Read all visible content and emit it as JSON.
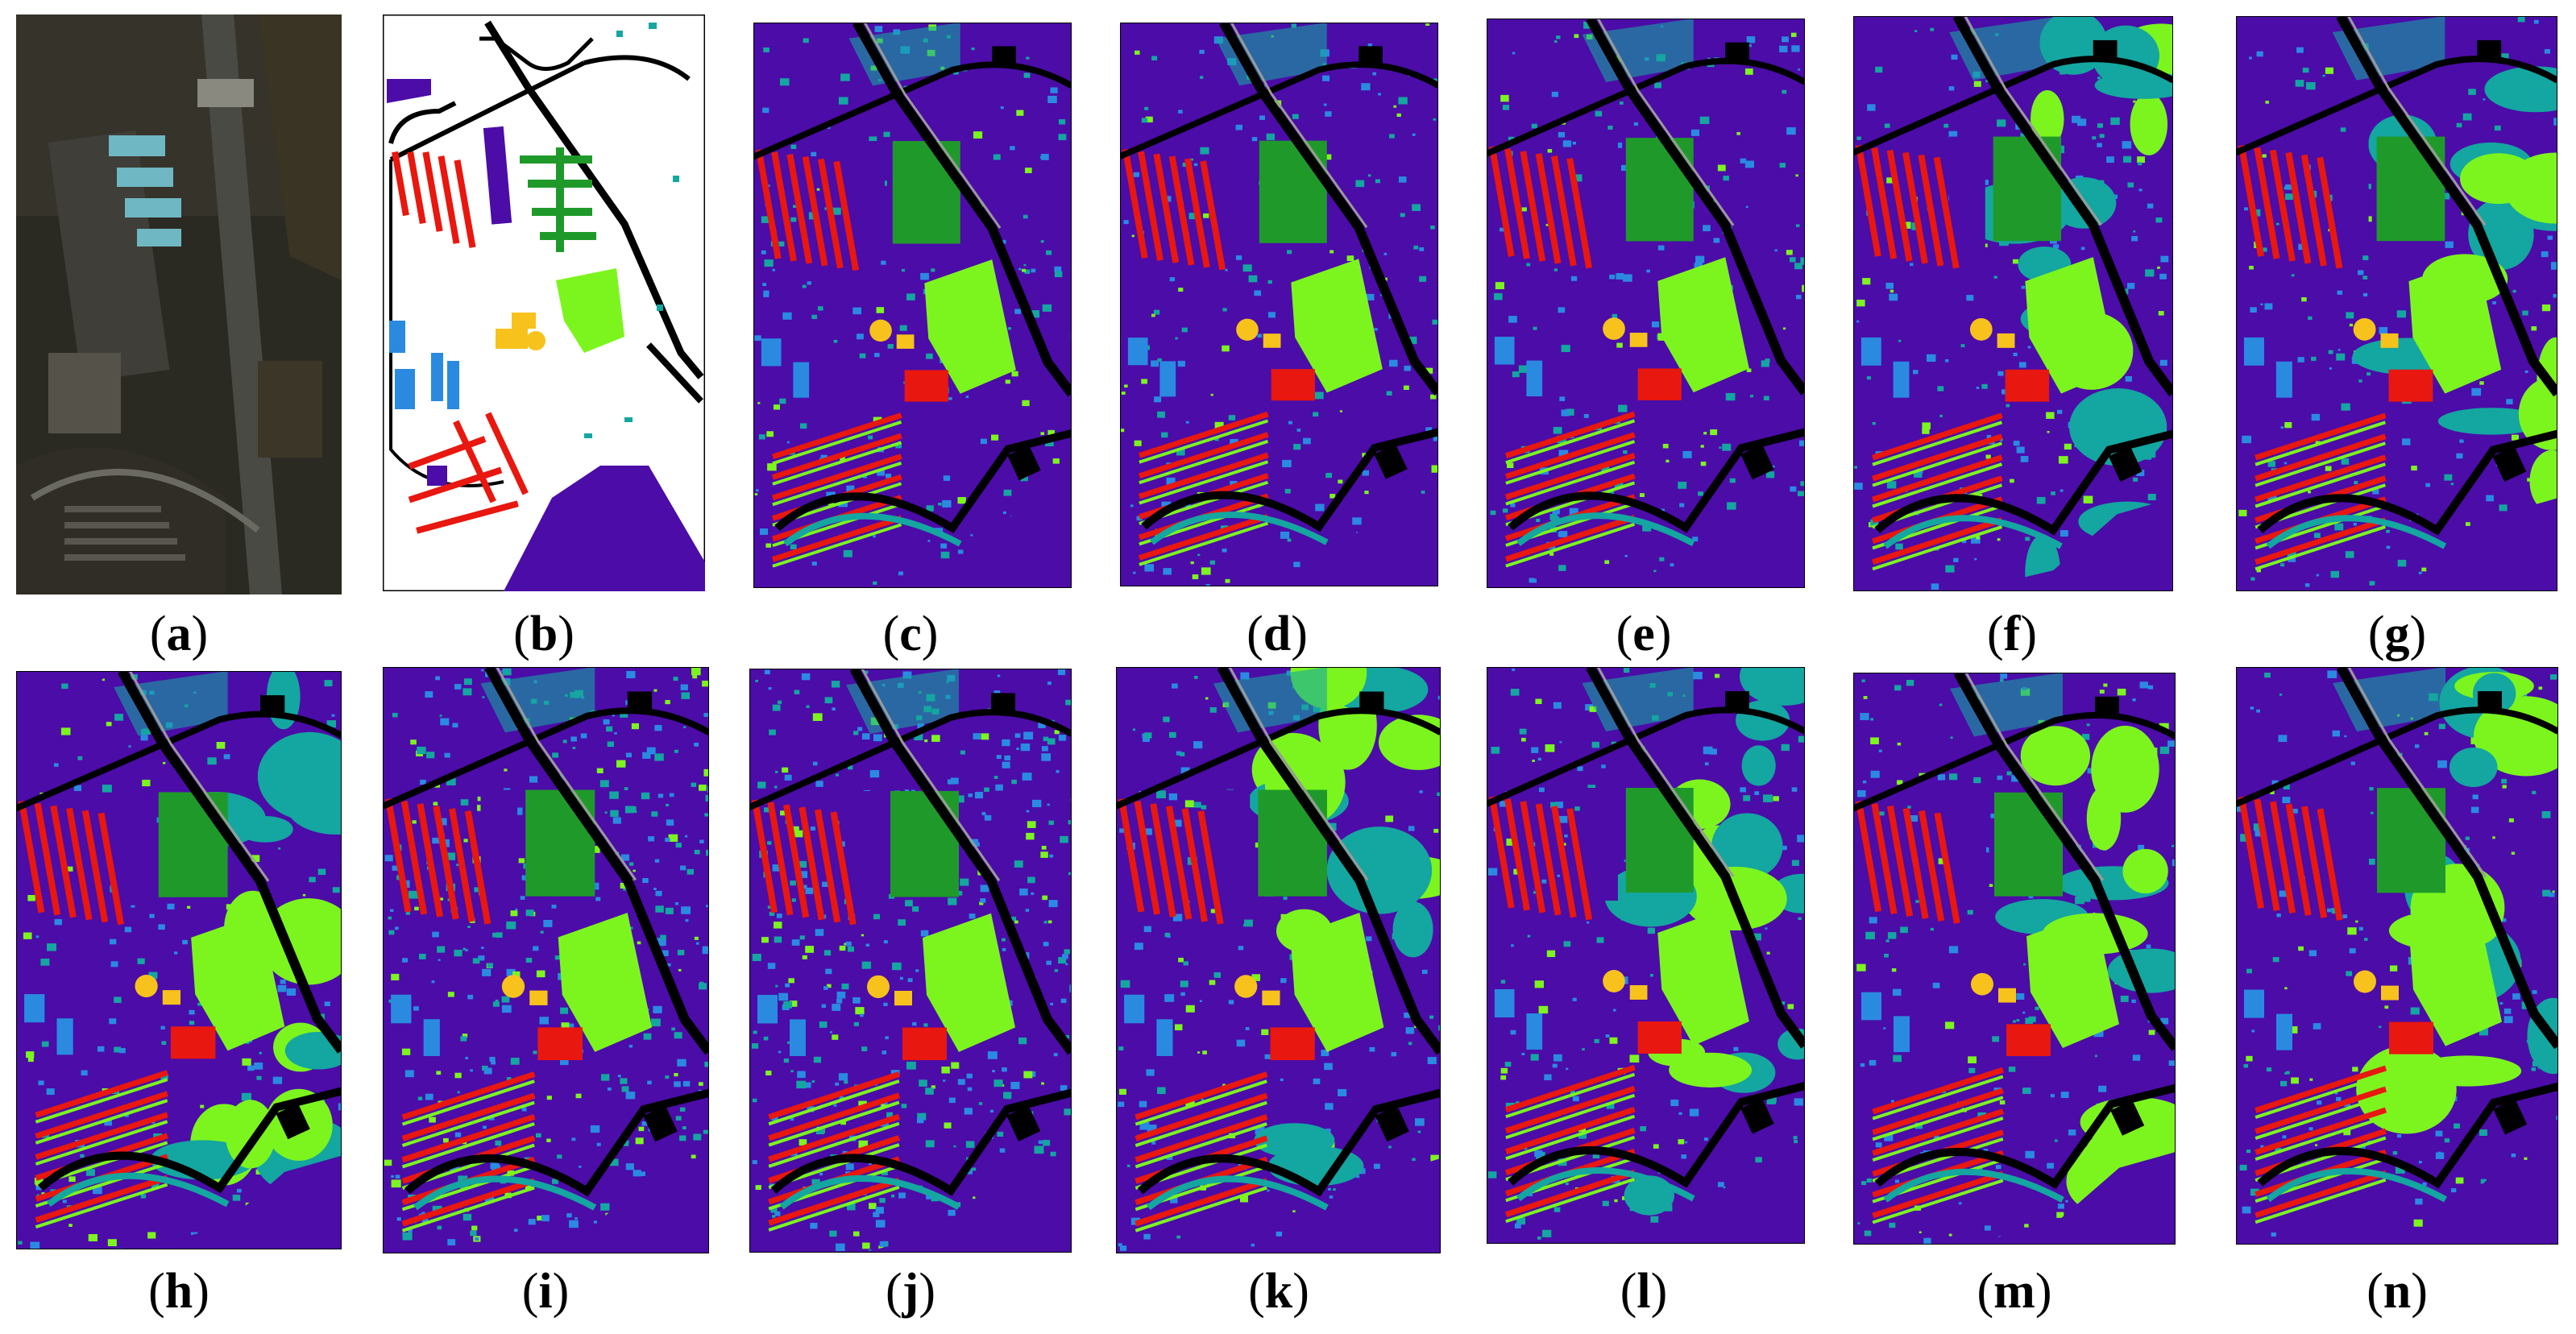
{
  "figure": {
    "panels": [
      {
        "id": "a",
        "label": "a",
        "kind": "rgb"
      },
      {
        "id": "b",
        "label": "b",
        "kind": "ground-truth"
      },
      {
        "id": "c",
        "label": "c",
        "kind": "map"
      },
      {
        "id": "d",
        "label": "d",
        "kind": "map"
      },
      {
        "id": "e",
        "label": "e",
        "kind": "map"
      },
      {
        "id": "f",
        "label": "f",
        "kind": "map"
      },
      {
        "id": "g",
        "label": "g",
        "kind": "map"
      },
      {
        "id": "h",
        "label": "h",
        "kind": "map"
      },
      {
        "id": "i",
        "label": "i",
        "kind": "map"
      },
      {
        "id": "j",
        "label": "j",
        "kind": "map"
      },
      {
        "id": "k",
        "label": "k",
        "kind": "map"
      },
      {
        "id": "l",
        "label": "l",
        "kind": "map"
      },
      {
        "id": "m",
        "label": "m",
        "kind": "map"
      },
      {
        "id": "n",
        "label": "n",
        "kind": "map"
      }
    ],
    "class_colors": {
      "background": "#4b0ca8",
      "meadow": "#7cf51e",
      "trees": "#1f9a2a",
      "buildings": "#e8170f",
      "bare_soil": "#f7c21b",
      "gravel": "#2a8ae0",
      "bitumen": "#14a6a0",
      "shadow": "#000000",
      "roads": "#9a9a9a"
    }
  }
}
